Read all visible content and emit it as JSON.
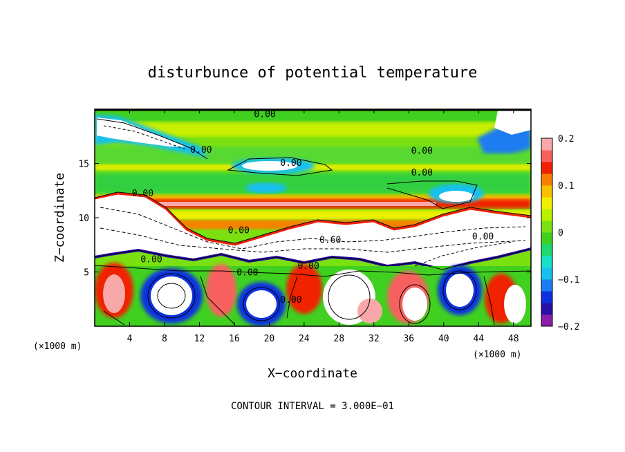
{
  "chart_data": {
    "type": "heatmap",
    "title": "disturbunce of potential temperature",
    "xlabel": "X−coordinate",
    "ylabel": "Z−coordinate",
    "x_unit_left": "(×1000 m)",
    "x_unit_right": "(×1000 m)",
    "x_ticks": [
      4,
      8,
      12,
      16,
      20,
      24,
      28,
      32,
      36,
      40,
      44,
      48
    ],
    "y_ticks": [
      5,
      10,
      15
    ],
    "xlim": [
      0,
      50
    ],
    "ylim": [
      0,
      20
    ],
    "colorbar": {
      "ticks": [
        "0.2",
        "0.1",
        "0",
        "−0.1",
        "−0.2"
      ],
      "tick_values": [
        0.2,
        0.1,
        0,
        -0.1,
        -0.2
      ],
      "range": [
        -0.2,
        0.2
      ],
      "colors": [
        "#8a1ea8",
        "#2a10a8",
        "#1030e0",
        "#1a7cf0",
        "#18c0f0",
        "#18e0c8",
        "#20d870",
        "#40d020",
        "#7ae010",
        "#b8f000",
        "#f0f000",
        "#f8c000",
        "#f88000",
        "#f02000",
        "#f86060",
        "#f8a8a8"
      ]
    },
    "contour_labels": [
      {
        "text": "0.00",
        "x": 19.5,
        "y": 19.6
      },
      {
        "text": "0.00",
        "x": 12.2,
        "y": 16.3
      },
      {
        "text": "0.00",
        "x": 22.5,
        "y": 15.1
      },
      {
        "text": "0.00",
        "x": 37.5,
        "y": 16.2
      },
      {
        "text": "0.00",
        "x": 37.5,
        "y": 14.2
      },
      {
        "text": "0.00",
        "x": 5.5,
        "y": 12.3
      },
      {
        "text": "0.00",
        "x": 16.5,
        "y": 8.9
      },
      {
        "text": "0.60",
        "x": 27.0,
        "y": 8.0
      },
      {
        "text": "0.00",
        "x": 6.5,
        "y": 6.2
      },
      {
        "text": "0.00",
        "x": 17.5,
        "y": 5.0
      },
      {
        "text": "0.00",
        "x": 24.5,
        "y": 5.6
      },
      {
        "text": "0.00",
        "x": 22.5,
        "y": 2.5
      },
      {
        "text": "0.00",
        "x": 44.5,
        "y": 8.3
      }
    ],
    "contour_interval_text": "CONTOUR INTERVAL = 3.000E−01",
    "grid": false,
    "legend": "colorbar-right"
  }
}
